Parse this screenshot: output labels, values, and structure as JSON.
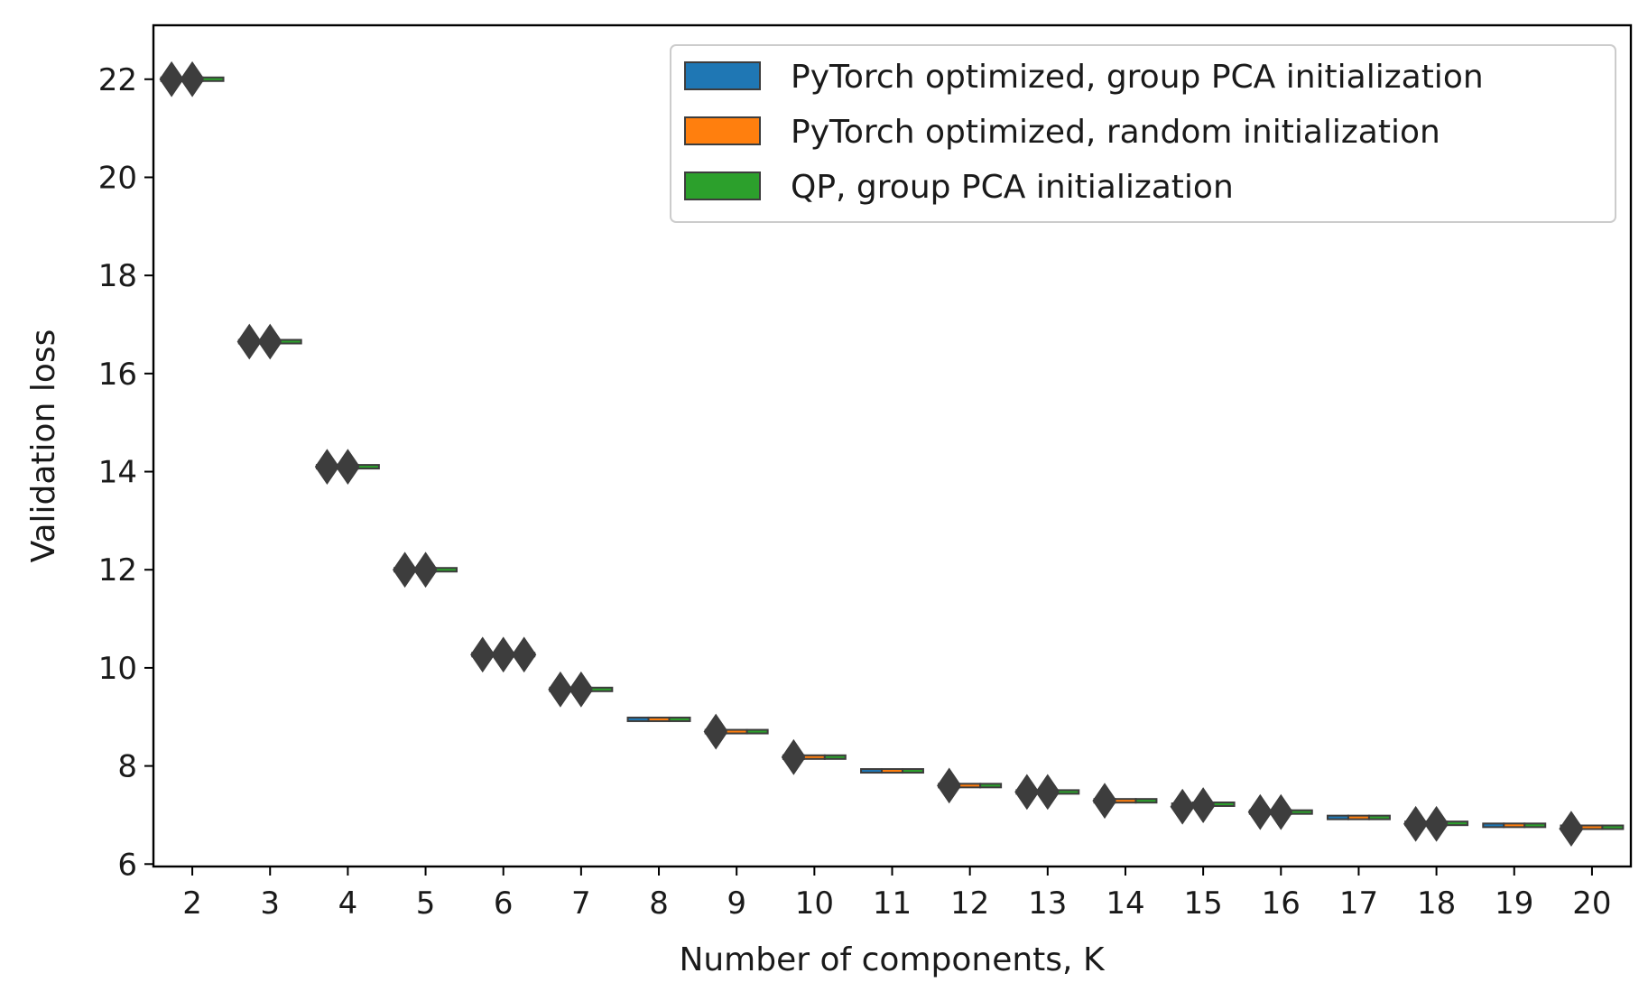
{
  "chart_data": {
    "type": "box",
    "xlabel": "Number of components, K",
    "ylabel": "Validation loss",
    "categories": [
      "2",
      "3",
      "4",
      "5",
      "6",
      "7",
      "8",
      "9",
      "10",
      "11",
      "12",
      "13",
      "14",
      "15",
      "16",
      "17",
      "18",
      "19",
      "20"
    ],
    "ylim": [
      5.95,
      23.1
    ],
    "yticks": [
      6,
      8,
      10,
      12,
      14,
      16,
      18,
      20,
      22
    ],
    "grid": false,
    "legend_position": "top-right",
    "series": [
      {
        "name": "PyTorch optimized, group PCA initialization",
        "color": "#1f77b4",
        "medians": [
          22.0,
          16.65,
          14.1,
          12.0,
          10.27,
          9.56,
          8.95,
          8.7,
          8.18,
          7.9,
          7.6,
          7.47,
          7.29,
          7.2,
          7.06,
          6.95,
          6.83,
          6.79,
          6.75
        ],
        "outliers": [
          [
            22.0
          ],
          [
            16.65
          ],
          [
            14.1
          ],
          [
            12.0
          ],
          [
            10.27
          ],
          [
            9.56
          ],
          [],
          [
            8.7
          ],
          [
            8.18
          ],
          [],
          [
            7.6
          ],
          [
            7.47
          ],
          [
            7.29
          ],
          [
            7.17
          ],
          [
            7.06
          ],
          [],
          [
            6.82
          ],
          [],
          [
            6.72
          ]
        ]
      },
      {
        "name": "PyTorch optimized, random initialization",
        "color": "#ff7f0e",
        "medians": [
          22.0,
          16.65,
          14.1,
          12.0,
          10.27,
          9.56,
          8.95,
          8.7,
          8.18,
          7.9,
          7.6,
          7.47,
          7.29,
          7.22,
          7.06,
          6.95,
          6.83,
          6.79,
          6.75
        ],
        "outliers": [
          [
            22.0
          ],
          [
            16.65
          ],
          [
            14.1
          ],
          [
            12.0
          ],
          [
            10.27
          ],
          [
            9.56
          ],
          [],
          [],
          [],
          [],
          [],
          [
            7.47
          ],
          [],
          [
            7.2
          ],
          [
            7.06
          ],
          [],
          [
            6.82
          ],
          [],
          []
        ]
      },
      {
        "name": "QP, group PCA initialization",
        "color": "#2ca02c",
        "medians": [
          22.0,
          16.65,
          14.1,
          12.0,
          10.27,
          9.56,
          8.95,
          8.7,
          8.18,
          7.9,
          7.6,
          7.47,
          7.29,
          7.22,
          7.06,
          6.95,
          6.83,
          6.79,
          6.75
        ],
        "outliers": [
          [],
          [],
          [],
          [],
          [
            10.27
          ],
          [],
          [],
          [],
          [],
          [],
          [],
          [],
          [],
          [],
          [],
          [],
          [],
          [],
          []
        ]
      }
    ]
  }
}
